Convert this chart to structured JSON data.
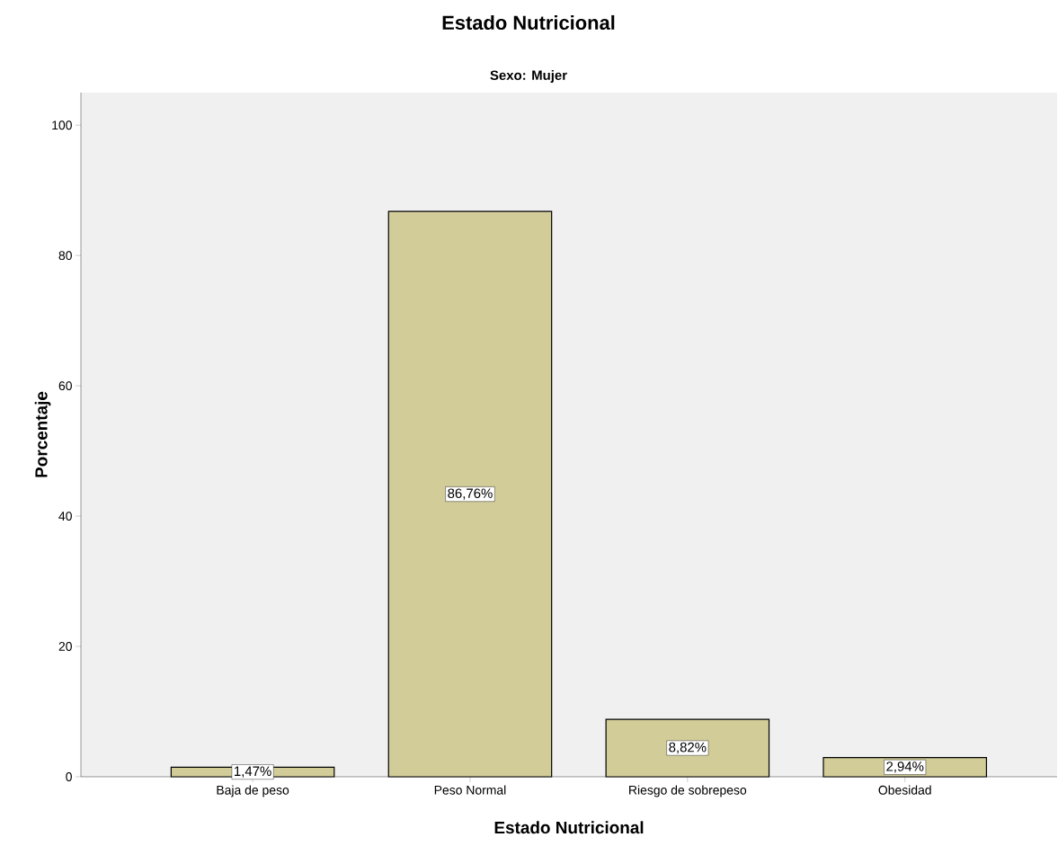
{
  "chart_data": {
    "type": "bar",
    "title": "Estado Nutricional",
    "subtitle": "Sexo: Mujer",
    "xlabel": "Estado Nutricional",
    "ylabel": "Porcentaje",
    "categories": [
      "Baja de peso",
      "Peso Normal",
      "Riesgo de sobrepeso",
      "Obesidad"
    ],
    "values": [
      1.47,
      86.76,
      8.82,
      2.94
    ],
    "color": "#d2cc98",
    "value_labels": [
      "1,47%",
      "86,76%",
      "8,82%",
      "2,94%"
    ],
    "ylim": [
      0,
      105
    ],
    "yticks": [
      0,
      20,
      40,
      60,
      80,
      100
    ],
    "grid": false
  }
}
